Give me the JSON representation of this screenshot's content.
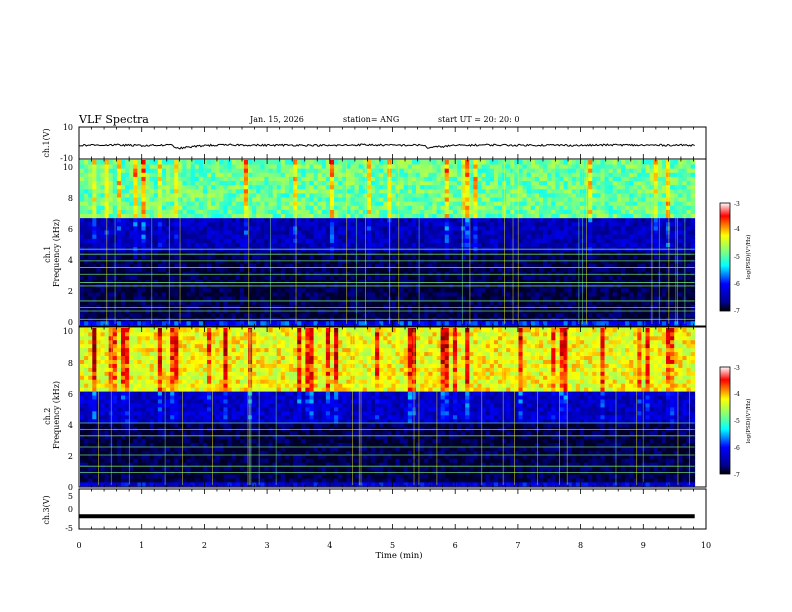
{
  "header": {
    "title": "VLF Spectra",
    "date": "Jan. 15, 2026",
    "station": "station= ANG",
    "start_ut": "start  UT  =   20: 20: 0"
  },
  "colorbar": {
    "label": "log(PSD)(V²/Hz)",
    "ticks": [
      "-3",
      "-4",
      "-5",
      "-6",
      "-7"
    ]
  },
  "chart_data": [
    {
      "type": "line",
      "panel": "ch.1 waveform",
      "ylabel": "ch.1(V)",
      "ylim": [
        -10,
        10
      ],
      "yticks": [
        "10",
        "-10"
      ],
      "xlim": [
        0,
        10
      ],
      "x": [
        0.0,
        0.5,
        1.0,
        1.5,
        1.55,
        2.0,
        2.5,
        3.0,
        3.5,
        4.0,
        4.5,
        5.0,
        5.5,
        5.55,
        6.0,
        6.5,
        7.0,
        7.5,
        8.0,
        8.5,
        9.0,
        9.5,
        9.82
      ],
      "values": [
        -1.4,
        -1.2,
        -1.6,
        -1.3,
        -3.5,
        -1.5,
        -1.2,
        -1.4,
        -1.3,
        -1.6,
        -1.1,
        -1.4,
        -1.3,
        -3.0,
        -1.5,
        -1.2,
        -1.4,
        -1.3,
        -1.5,
        -1.2,
        -1.4,
        -1.3,
        -1.4
      ]
    },
    {
      "type": "heatmap",
      "panel": "ch.1 spectrogram",
      "ylabel": "ch.1\nFrequency (kHz)",
      "ylim": [
        0,
        10
      ],
      "yticks": [
        "0",
        "2",
        "4",
        "6",
        "8",
        "10"
      ],
      "xlim": [
        0,
        9.82
      ],
      "colorscale_range": [
        -7,
        -3
      ],
      "frequency_bands_khz": [
        {
          "f_low": 0,
          "f_high": 0.3,
          "level": -5.8
        },
        {
          "f_low": 0.3,
          "f_high": 4.5,
          "level": -6.9
        },
        {
          "f_low": 4.5,
          "f_high": 6.5,
          "level": -6.3
        },
        {
          "f_low": 6.5,
          "f_high": 10,
          "level": -4.8
        }
      ],
      "line_frequencies_khz": [
        0.4,
        0.9,
        1.1,
        1.5,
        2.4,
        2.6,
        3.1,
        3.5,
        3.9,
        4.3,
        4.6
      ]
    },
    {
      "type": "heatmap",
      "panel": "ch.2 spectrogram",
      "ylabel": "ch.2\nFrequency (kHz)",
      "ylim": [
        0,
        10
      ],
      "yticks": [
        "0",
        "2",
        "4",
        "6",
        "8",
        "10"
      ],
      "xlim": [
        0,
        9.82
      ],
      "colorscale_range": [
        -7,
        -3
      ],
      "frequency_bands_khz": [
        {
          "f_low": 0,
          "f_high": 0.3,
          "level": -6.0
        },
        {
          "f_low": 0.3,
          "f_high": 4.0,
          "level": -6.9
        },
        {
          "f_low": 4.0,
          "f_high": 6.0,
          "level": -6.2
        },
        {
          "f_low": 6.0,
          "f_high": 10,
          "level": -4.2
        }
      ],
      "line_frequencies_khz": [
        0.9,
        1.3,
        2.0,
        2.5,
        3.2,
        3.6,
        4.0
      ]
    },
    {
      "type": "line",
      "panel": "ch.3 waveform",
      "ylabel": "ch.3(V)",
      "ylim": [
        -5,
        5
      ],
      "yticks": [
        "5",
        "0",
        "-5"
      ],
      "xlim": [
        0,
        10
      ],
      "x": [
        0,
        9.82
      ],
      "values": [
        -1.8,
        -1.8
      ]
    }
  ],
  "xaxis": {
    "label": "Time  (min)",
    "ticks": [
      "0",
      "1",
      "2",
      "3",
      "4",
      "5",
      "6",
      "7",
      "8",
      "9",
      "10"
    ]
  },
  "colors": {
    "jet": [
      "#00008f",
      "#0000ff",
      "#00ffff",
      "#7fff7f",
      "#ffff00",
      "#ff0000",
      "#7f0000"
    ],
    "background": "#ffffff",
    "trace": "#000000"
  }
}
